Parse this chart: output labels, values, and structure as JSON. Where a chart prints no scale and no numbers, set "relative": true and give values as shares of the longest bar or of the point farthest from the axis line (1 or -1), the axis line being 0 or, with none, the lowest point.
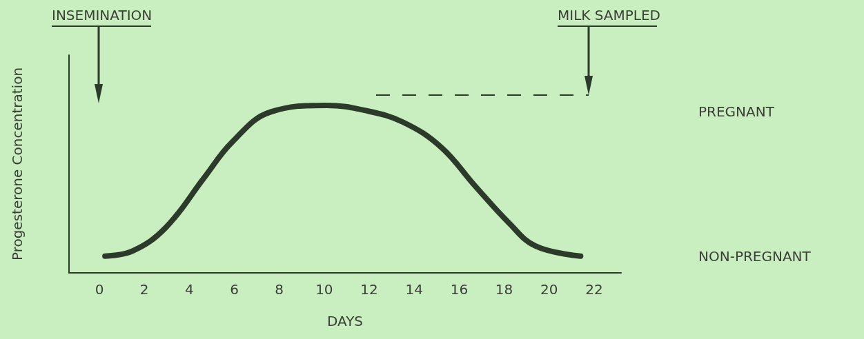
{
  "chart_data": {
    "type": "line",
    "relative": true,
    "xlabel": "DAYS",
    "ylabel": "Progesterone Concentration",
    "xlim": [
      -1.35,
      23.2
    ],
    "xticks": [
      0,
      2,
      4,
      6,
      8,
      10,
      12,
      14,
      16,
      18,
      20,
      22
    ],
    "grid": false,
    "series": [
      {
        "color": "#2b3a29",
        "x": [
          0.25,
          1.47,
          2.95,
          4.67,
          5.9,
          7.6,
          10.1,
          11.8,
          13.5,
          15.2,
          16.7,
          18.2,
          19.4,
          21.4
        ],
        "values": [
          0.1,
          0.13,
          0.27,
          0.57,
          0.78,
          0.96,
          1,
          0.97,
          0.9,
          0.75,
          0.52,
          0.3,
          0.16,
          0.1
        ]
      }
    ],
    "annotations": [
      "INSEMINATION",
      "MILK SAMPLED",
      "PREGNANT",
      "NON-PREGNANT"
    ]
  }
}
